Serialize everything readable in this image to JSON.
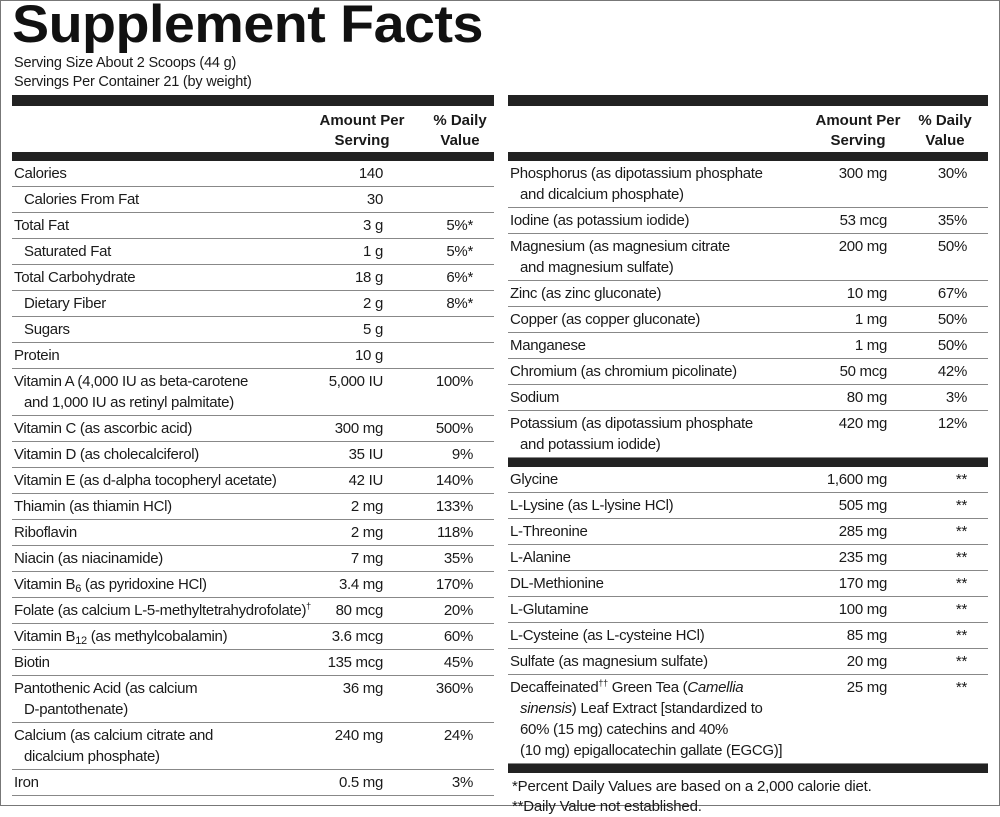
{
  "title": "Supplement Facts",
  "serving_size": "Serving Size About 2 Scoops (44 g)",
  "servings_per_container": "Servings Per Container 21 (by weight)",
  "headers": {
    "amount_line1": "Amount Per",
    "amount_line2": "Serving",
    "dv_line1": "% Daily",
    "dv_line2": "Value"
  },
  "left_rows": [
    {
      "lines": [
        [
          {
            "t": "Calories"
          }
        ]
      ],
      "amount": "140",
      "dv": ""
    },
    {
      "lines": [
        [
          {
            "t": "Calories From Fat"
          }
        ]
      ],
      "amount": "30",
      "dv": "",
      "indent": true
    },
    {
      "lines": [
        [
          {
            "t": "Total Fat"
          }
        ]
      ],
      "amount": "3 g",
      "dv": "5%*"
    },
    {
      "lines": [
        [
          {
            "t": "Saturated  Fat"
          }
        ]
      ],
      "amount": "1 g",
      "dv": "5%*",
      "indent": true
    },
    {
      "lines": [
        [
          {
            "t": "Total Carbohydrate"
          }
        ]
      ],
      "amount": "18 g",
      "dv": "6%*"
    },
    {
      "lines": [
        [
          {
            "t": "Dietary Fiber"
          }
        ]
      ],
      "amount": "2 g",
      "dv": "8%*",
      "indent": true
    },
    {
      "lines": [
        [
          {
            "t": "Sugars"
          }
        ]
      ],
      "amount": "5 g",
      "dv": "",
      "indent": true
    },
    {
      "lines": [
        [
          {
            "t": "Protein"
          }
        ]
      ],
      "amount": "10 g",
      "dv": ""
    },
    {
      "lines": [
        [
          {
            "t": "Vitamin A (4,000 IU as beta-carotene"
          }
        ],
        [
          {
            "t": "and 1,000 IU as retinyl palmitate)"
          }
        ]
      ],
      "amount": "5,000 IU",
      "dv": "100%"
    },
    {
      "lines": [
        [
          {
            "t": "Vitamin C (as ascorbic acid)"
          }
        ]
      ],
      "amount": "300 mg",
      "dv": "500%"
    },
    {
      "lines": [
        [
          {
            "t": "Vitamin D (as cholecalciferol)"
          }
        ]
      ],
      "amount": "35 IU",
      "dv": "9%"
    },
    {
      "lines": [
        [
          {
            "t": "Vitamin E (as d-alpha tocopheryl acetate)"
          }
        ]
      ],
      "amount": "42 IU",
      "dv": "140%"
    },
    {
      "lines": [
        [
          {
            "t": "Thiamin (as thiamin HCl)"
          }
        ]
      ],
      "amount": "2 mg",
      "dv": "133%"
    },
    {
      "lines": [
        [
          {
            "t": "Riboflavin"
          }
        ]
      ],
      "amount": "2 mg",
      "dv": "118%"
    },
    {
      "lines": [
        [
          {
            "t": "Niacin (as niacinamide)"
          }
        ]
      ],
      "amount": "7 mg",
      "dv": "35%"
    },
    {
      "lines": [
        [
          {
            "t": "Vitamin B"
          },
          {
            "t": "6",
            "sub": true
          },
          {
            "t": " (as pyridoxine HCl)"
          }
        ]
      ],
      "amount": "3.4 mg",
      "dv": "170%"
    },
    {
      "lines": [
        [
          {
            "t": "Folate (as calcium L-5-methyltetrahydrofolate)"
          },
          {
            "t": "†",
            "sup": true
          }
        ]
      ],
      "amount": "80 mcg",
      "dv": "20%"
    },
    {
      "lines": [
        [
          {
            "t": "Vitamin B"
          },
          {
            "t": "12",
            "sub": true
          },
          {
            "t": " (as methylcobalamin)"
          }
        ]
      ],
      "amount": "3.6 mcg",
      "dv": "60%"
    },
    {
      "lines": [
        [
          {
            "t": "Biotin"
          }
        ]
      ],
      "amount": "135 mcg",
      "dv": "45%"
    },
    {
      "lines": [
        [
          {
            "t": "Pantothenic Acid (as calcium"
          }
        ],
        [
          {
            "t": "D-pantothenate)"
          }
        ]
      ],
      "amount": "36 mg",
      "dv": "360%"
    },
    {
      "lines": [
        [
          {
            "t": "Calcium (as calcium citrate and"
          }
        ],
        [
          {
            "t": "dicalcium phosphate)"
          }
        ]
      ],
      "amount": "240 mg",
      "dv": "24%"
    },
    {
      "lines": [
        [
          {
            "t": "Iron"
          }
        ]
      ],
      "amount": "0.5 mg",
      "dv": "3%"
    }
  ],
  "right_rows": [
    {
      "lines": [
        [
          {
            "t": "Phosphorus (as dipotassium phosphate"
          }
        ],
        [
          {
            "t": "and dicalcium phosphate)"
          }
        ]
      ],
      "amount": "300 mg",
      "dv": "30%"
    },
    {
      "lines": [
        [
          {
            "t": "Iodine (as potassium iodide)"
          }
        ]
      ],
      "amount": "53 mcg",
      "dv": "35%"
    },
    {
      "lines": [
        [
          {
            "t": "Magnesium (as magnesium citrate"
          }
        ],
        [
          {
            "t": "and magnesium sulfate)"
          }
        ]
      ],
      "amount": "200 mg",
      "dv": "50%"
    },
    {
      "lines": [
        [
          {
            "t": "Zinc (as zinc gluconate)"
          }
        ]
      ],
      "amount": "10 mg",
      "dv": "67%"
    },
    {
      "lines": [
        [
          {
            "t": "Copper (as copper gluconate)"
          }
        ]
      ],
      "amount": "1 mg",
      "dv": "50%"
    },
    {
      "lines": [
        [
          {
            "t": "Manganese"
          }
        ]
      ],
      "amount": "1 mg",
      "dv": "50%"
    },
    {
      "lines": [
        [
          {
            "t": "Chromium (as chromium picolinate)"
          }
        ]
      ],
      "amount": "50 mcg",
      "dv": "42%"
    },
    {
      "lines": [
        [
          {
            "t": "Sodium"
          }
        ]
      ],
      "amount": "80 mg",
      "dv": "3%"
    },
    {
      "lines": [
        [
          {
            "t": "Potassium (as dipotassium phosphate"
          }
        ],
        [
          {
            "t": "and potassium iodide)"
          }
        ]
      ],
      "amount": "420 mg",
      "dv": "12%"
    }
  ],
  "right_rows_2": [
    {
      "lines": [
        [
          {
            "t": "Glycine"
          }
        ]
      ],
      "amount": "1,600 mg",
      "dv": "**"
    },
    {
      "lines": [
        [
          {
            "t": "L-Lysine (as L-lysine HCl)"
          }
        ]
      ],
      "amount": "505 mg",
      "dv": "**"
    },
    {
      "lines": [
        [
          {
            "t": "L-Threonine"
          }
        ]
      ],
      "amount": "285 mg",
      "dv": "**"
    },
    {
      "lines": [
        [
          {
            "t": "L-Alanine"
          }
        ]
      ],
      "amount": "235 mg",
      "dv": "**"
    },
    {
      "lines": [
        [
          {
            "t": "DL-Methionine"
          }
        ]
      ],
      "amount": "170 mg",
      "dv": "**"
    },
    {
      "lines": [
        [
          {
            "t": "L-Glutamine"
          }
        ]
      ],
      "amount": "100 mg",
      "dv": "**"
    },
    {
      "lines": [
        [
          {
            "t": "L-Cysteine (as L-cysteine HCl)"
          }
        ]
      ],
      "amount": "85 mg",
      "dv": "**"
    },
    {
      "lines": [
        [
          {
            "t": "Sulfate (as magnesium sulfate)"
          }
        ]
      ],
      "amount": "20 mg",
      "dv": "**"
    },
    {
      "lines": [
        [
          {
            "t": "Decaffeinated"
          },
          {
            "t": "††",
            "sup": true
          },
          {
            "t": " Green Tea ("
          },
          {
            "t": "Camellia",
            "i": true
          }
        ],
        [
          {
            "t": "sinensis",
            "i": true
          },
          {
            "t": ") Leaf Extract [standardized to"
          }
        ],
        [
          {
            "t": "60% (15 mg) catechins and 40%"
          }
        ],
        [
          {
            "t": "(10 mg) epigallocatechin gallate (EGCG)]"
          }
        ]
      ],
      "amount": "25 mg",
      "dv": "**"
    }
  ],
  "footnotes": [
    "*Percent Daily Values are based on a 2,000 calorie diet.",
    "**Daily Value not established."
  ]
}
